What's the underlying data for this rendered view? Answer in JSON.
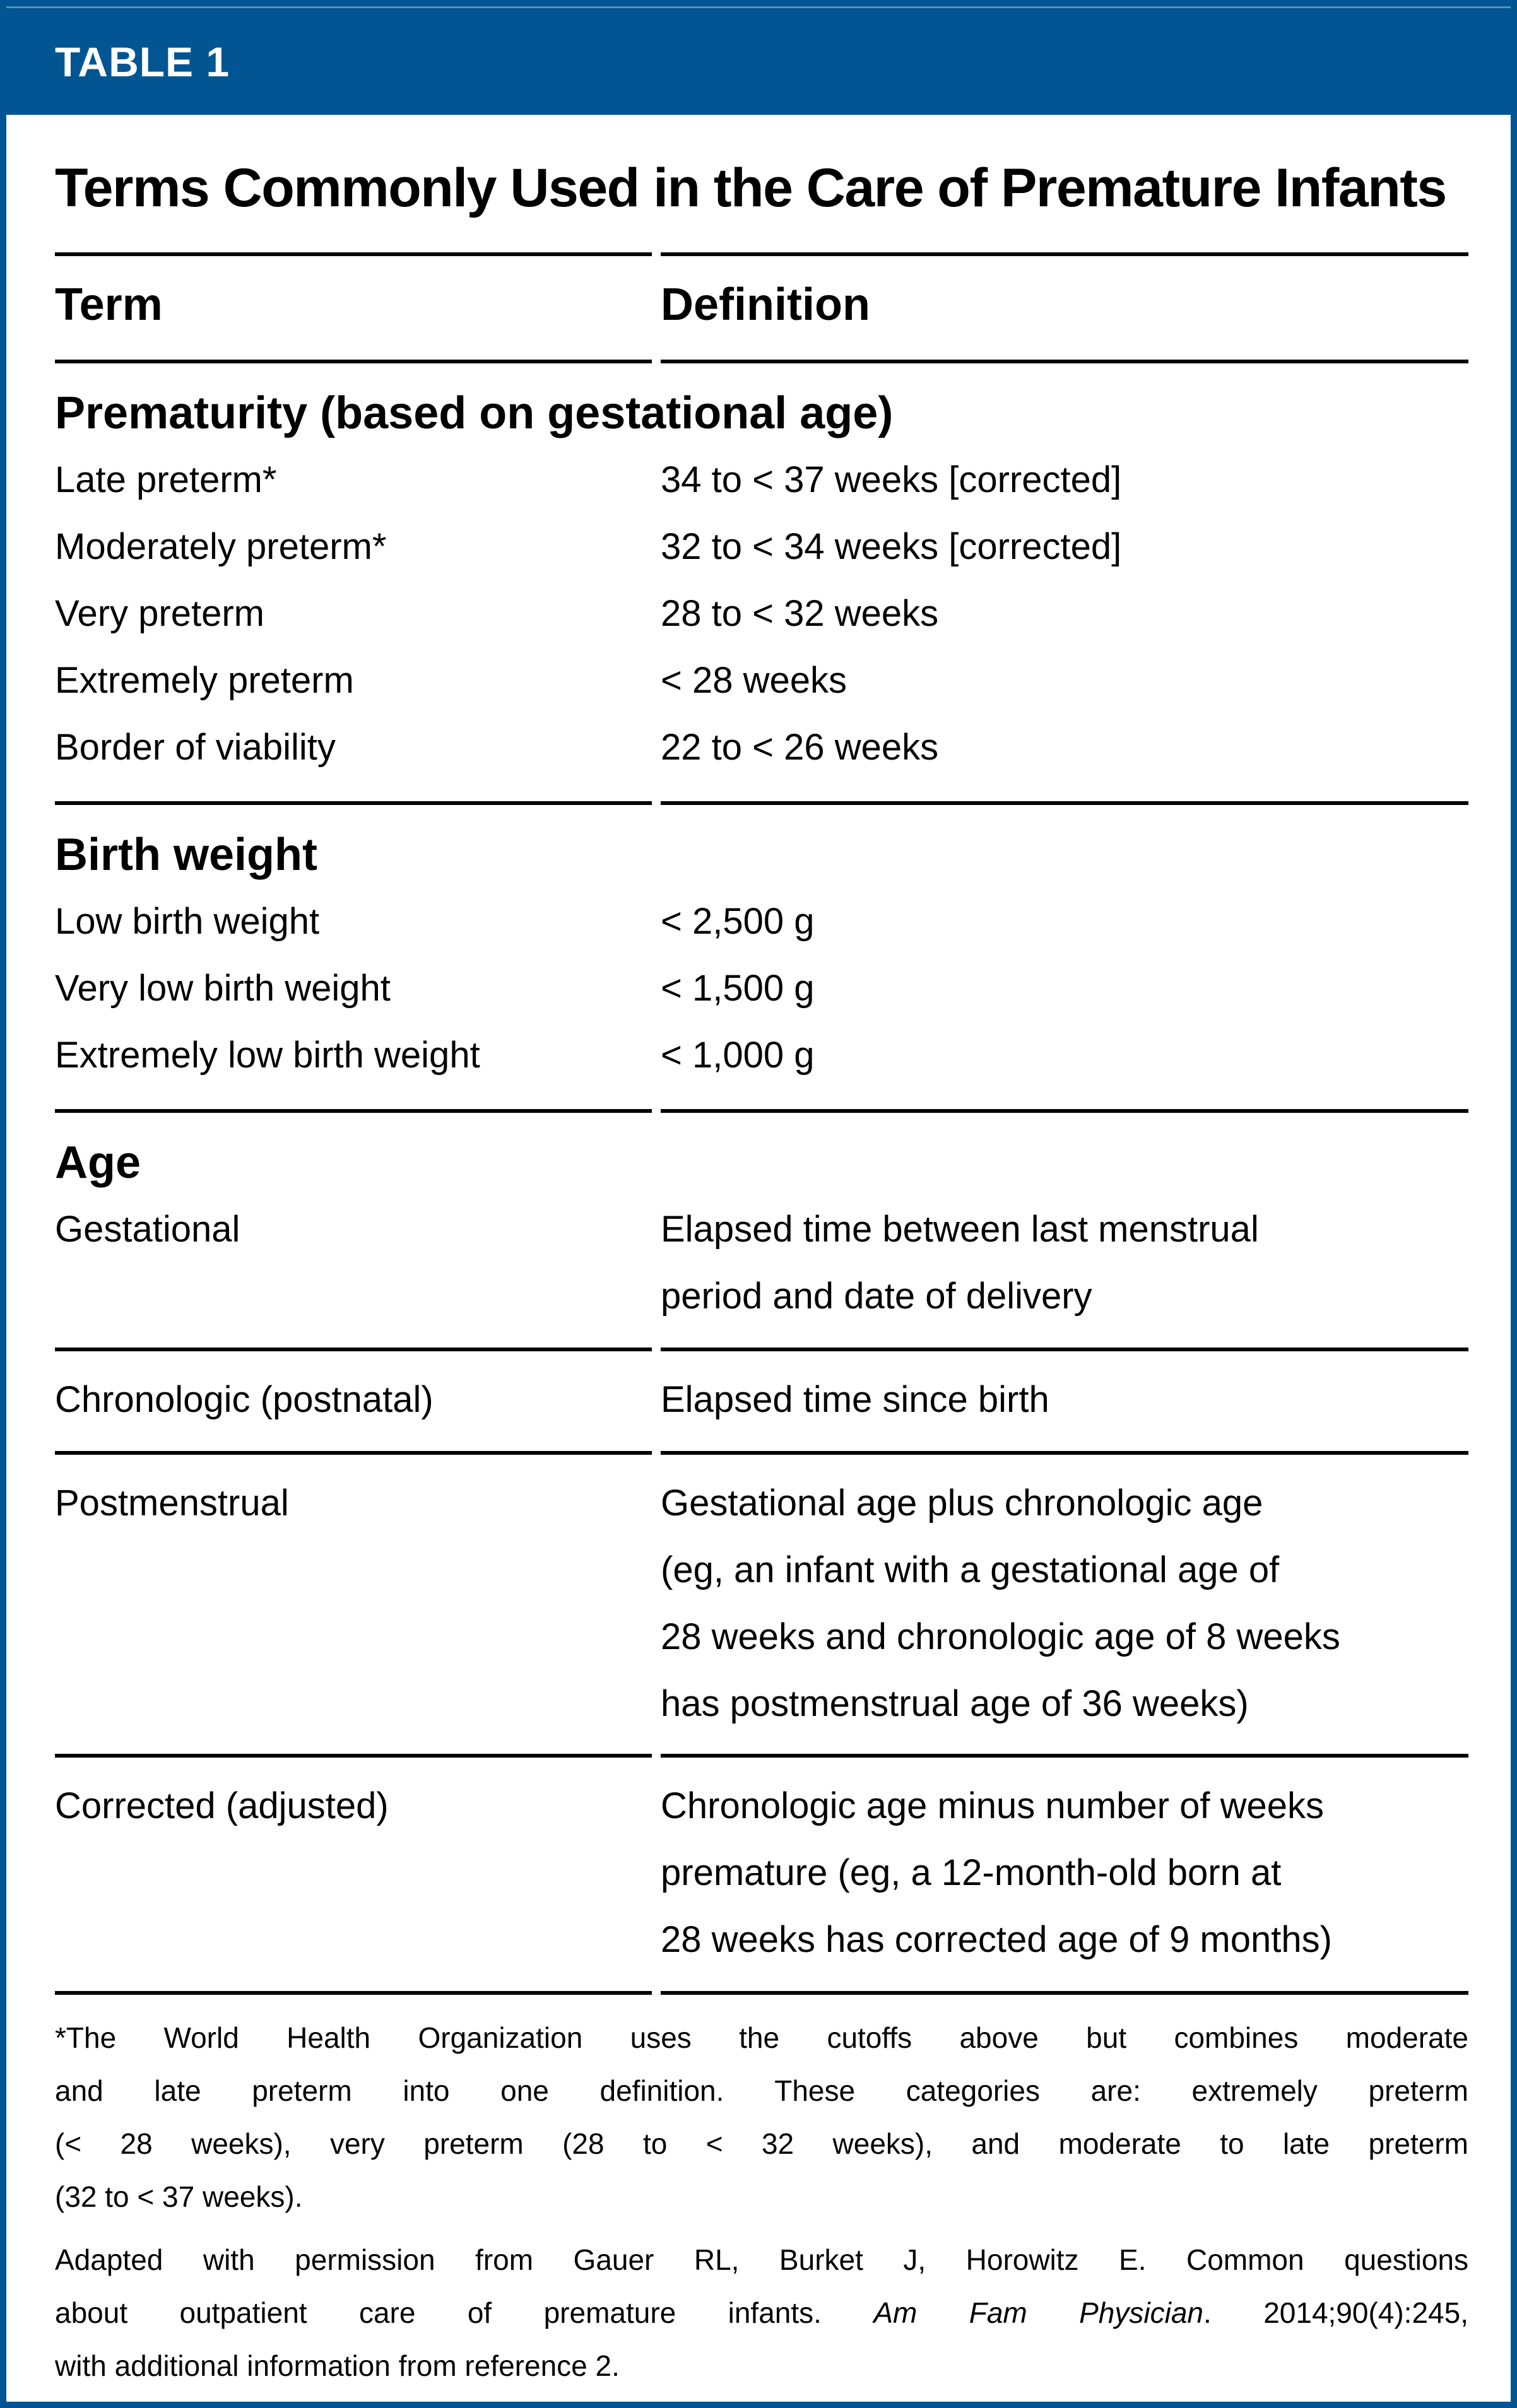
{
  "header": {
    "label": "TABLE 1",
    "title": "Terms Commonly Used in the Care of Premature Infants"
  },
  "columns": {
    "term": "Term",
    "definition": "Definition"
  },
  "sections": [
    {
      "header": "Prematurity (based on gestational age)",
      "rows": [
        {
          "term": "Late preterm*",
          "definition": "34 to < 37 weeks [corrected]"
        },
        {
          "term": "Moderately preterm*",
          "definition": "32 to < 34 weeks [corrected]"
        },
        {
          "term": "Very preterm",
          "definition": "28 to < 32 weeks"
        },
        {
          "term": "Extremely preterm",
          "definition": "< 28 weeks"
        },
        {
          "term": "Border of viability",
          "definition": "22 to < 26 weeks"
        }
      ]
    },
    {
      "header": "Birth weight",
      "rows": [
        {
          "term": "Low birth weight",
          "definition": "< 2,500 g"
        },
        {
          "term": "Very low birth weight",
          "definition": "< 1,500 g"
        },
        {
          "term": "Extremely low birth weight",
          "definition": "< 1,000 g"
        }
      ]
    },
    {
      "header": "Age",
      "rows": [
        {
          "term": "Gestational",
          "definition_lines": [
            "Elapsed time between last menstrual",
            "period and date of delivery"
          ]
        },
        {
          "term": "Chronologic (postnatal)",
          "definition": "Elapsed time since birth"
        },
        {
          "term": "Postmenstrual",
          "definition_lines": [
            "Gestational age plus chronologic age",
            "(eg, an infant with a gestational age of",
            "28 weeks and chronologic age of 8 weeks",
            "has postmenstrual age of 36 weeks)"
          ]
        },
        {
          "term": "Corrected (adjusted)",
          "definition_lines": [
            "Chronologic age minus number of weeks",
            "premature (eg, a 12-month-old born at",
            "28 weeks has corrected age of 9 months)"
          ]
        }
      ]
    }
  ],
  "footnotes": {
    "asterisk_lines": [
      "*The World Health Organization uses the cutoffs above but combines moderate",
      "and late preterm into one definition. These categories are: extremely preterm",
      "(< 28 weeks), very preterm (28 to < 32 weeks), and moderate to late preterm",
      "(32 to < 37 weeks)."
    ],
    "adapted": {
      "line1": "Adapted with permission from Gauer RL, Burket J, Horowitz E. Common questions",
      "line2_pre": "about outpatient care of premature infants. ",
      "line2_italic": "Am Fam Physician",
      "line2_post": ". 2014;90(4):245,",
      "line3": "with additional information from reference 2."
    }
  },
  "colors": {
    "accent_blue": "#005592",
    "rule_black": "#000000"
  }
}
